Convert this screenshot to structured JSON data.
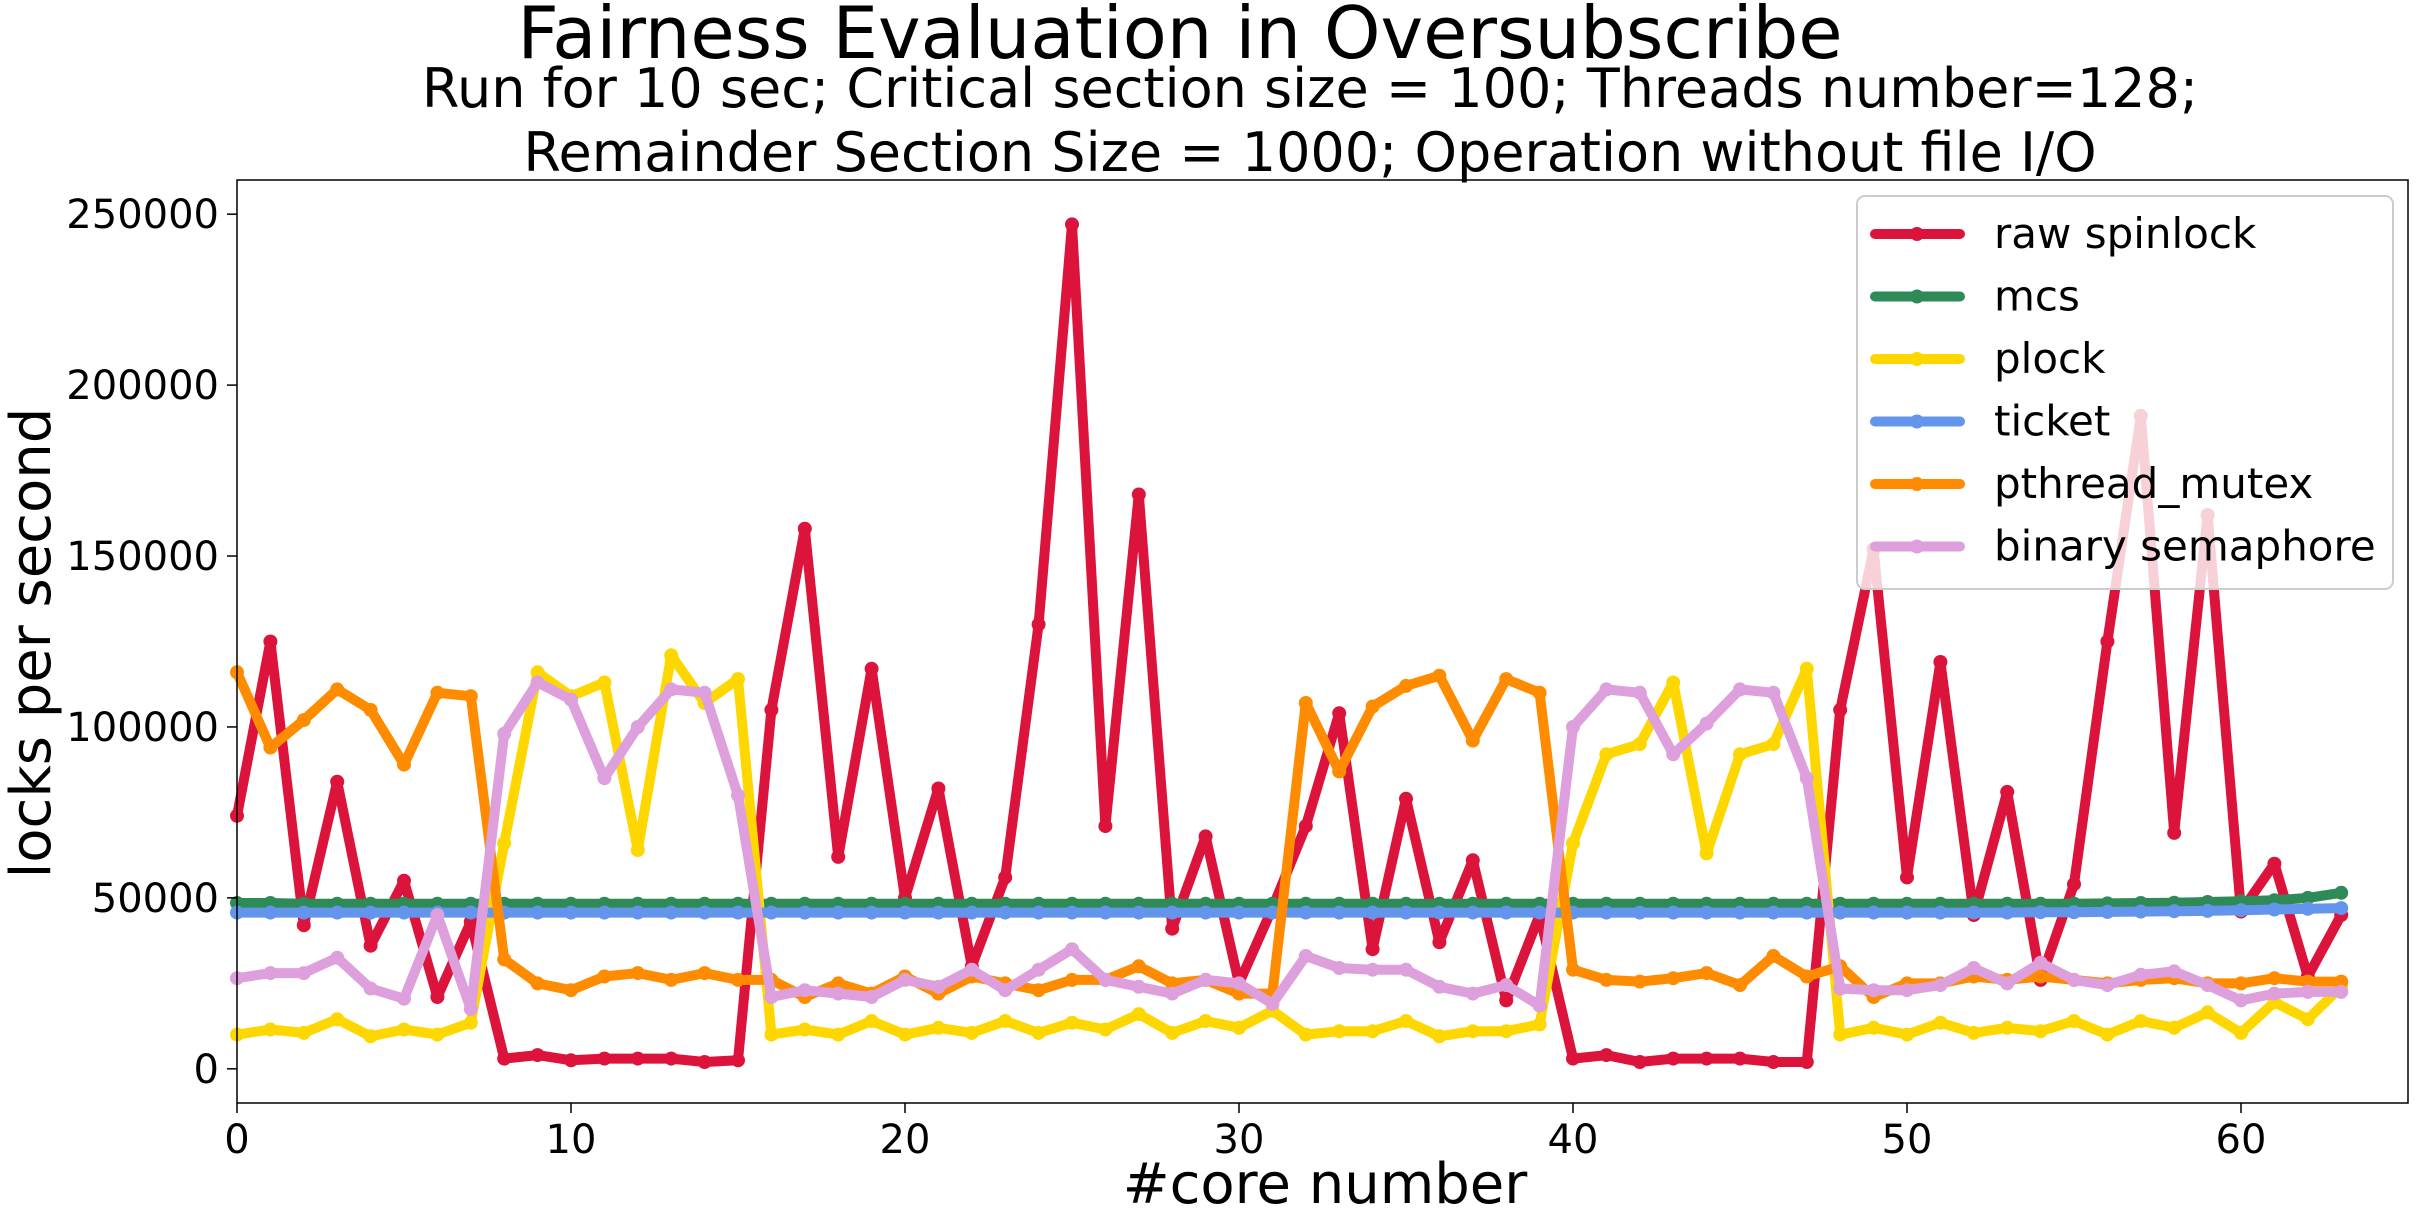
{
  "chart_data": {
    "type": "line",
    "title": "Fairness Evaluation in Oversubscribe",
    "subtitle_line1": "Run for 10 sec; Critical section size = 100; Threads number=128;",
    "subtitle_line2": "Remainder Section Size = 1000; Operation without file I/O",
    "xlabel": "#core number",
    "ylabel": "locks per second",
    "xlim": [
      0,
      65
    ],
    "ylim": [
      -10000,
      260000
    ],
    "xticks": [
      0,
      10,
      20,
      30,
      40,
      50,
      60
    ],
    "yticks": [
      0,
      50000,
      100000,
      150000,
      200000,
      250000
    ],
    "grid": false,
    "legend_position": "upper right",
    "x": [
      0,
      1,
      2,
      3,
      4,
      5,
      6,
      7,
      8,
      9,
      10,
      11,
      12,
      13,
      14,
      15,
      16,
      17,
      18,
      19,
      20,
      21,
      22,
      23,
      24,
      25,
      26,
      27,
      28,
      29,
      30,
      31,
      32,
      33,
      34,
      35,
      36,
      37,
      38,
      39,
      40,
      41,
      42,
      43,
      44,
      45,
      46,
      47,
      48,
      49,
      50,
      51,
      52,
      53,
      54,
      55,
      56,
      57,
      58,
      59,
      60,
      61,
      62,
      63
    ],
    "series": [
      {
        "name": "raw spinlock",
        "color": "#dc143c",
        "values": [
          74000,
          125000,
          42000,
          84000,
          36000,
          55000,
          21000,
          43000,
          3000,
          4000,
          2500,
          3000,
          3000,
          3000,
          2000,
          2500,
          105000,
          158000,
          62000,
          117000,
          50000,
          82000,
          30000,
          56000,
          130000,
          247000,
          71000,
          168000,
          41000,
          68000,
          25000,
          47000,
          71000,
          104000,
          35000,
          79000,
          37000,
          61000,
          20000,
          45000,
          3000,
          4000,
          2000,
          3000,
          3000,
          3000,
          2000,
          2000,
          105000,
          152000,
          56000,
          119000,
          45000,
          81000,
          26000,
          54000,
          125000,
          191000,
          69000,
          162000,
          46000,
          60000,
          27000,
          45000
        ]
      },
      {
        "name": "mcs",
        "color": "#2e8b57",
        "values": [
          48500,
          48500,
          48300,
          48300,
          48300,
          48300,
          48300,
          48300,
          48300,
          48300,
          48300,
          48300,
          48300,
          48300,
          48300,
          48300,
          48300,
          48300,
          48300,
          48300,
          48300,
          48300,
          48300,
          48300,
          48300,
          48300,
          48300,
          48300,
          48300,
          48300,
          48300,
          48300,
          48300,
          48300,
          48300,
          48300,
          48300,
          48300,
          48300,
          48300,
          48300,
          48300,
          48300,
          48300,
          48300,
          48300,
          48300,
          48300,
          48300,
          48300,
          48300,
          48300,
          48300,
          48300,
          48300,
          48300,
          48400,
          48500,
          48600,
          48800,
          49000,
          49300,
          50000,
          51500
        ]
      },
      {
        "name": "plock",
        "color": "#ffd700",
        "values": [
          10000,
          11500,
          10500,
          14500,
          9500,
          11500,
          10000,
          13500,
          66000,
          116000,
          109000,
          113000,
          64000,
          121000,
          107000,
          114000,
          10000,
          11500,
          10000,
          14000,
          10000,
          12000,
          10500,
          14000,
          10500,
          13500,
          11500,
          16000,
          10500,
          14000,
          12000,
          17000,
          10000,
          11000,
          11000,
          14000,
          9500,
          11000,
          11000,
          13000,
          66000,
          92000,
          95000,
          113000,
          63000,
          92000,
          95000,
          117000,
          10000,
          12000,
          10000,
          13500,
          10500,
          12000,
          11000,
          14000,
          10000,
          14000,
          12000,
          16500,
          10500,
          19500,
          14500,
          24000
        ]
      },
      {
        "name": "ticket",
        "color": "#6495ed",
        "values": [
          45700,
          45700,
          45700,
          45700,
          45700,
          45700,
          45700,
          45700,
          45700,
          45700,
          45700,
          45700,
          45700,
          45700,
          45700,
          45700,
          45700,
          45700,
          45700,
          45700,
          45700,
          45700,
          45700,
          45700,
          45700,
          45700,
          45700,
          45700,
          45700,
          45700,
          45700,
          45700,
          45700,
          45700,
          45700,
          45700,
          45700,
          45700,
          45700,
          45700,
          45700,
          45700,
          45700,
          45700,
          45700,
          45700,
          45700,
          45700,
          45700,
          45700,
          45700,
          45700,
          45700,
          45700,
          45800,
          45800,
          45900,
          46000,
          46100,
          46200,
          46400,
          46600,
          46800,
          47000
        ]
      },
      {
        "name": "pthread_mutex",
        "color": "#ff8c00",
        "values": [
          116000,
          94000,
          102000,
          111000,
          105000,
          89000,
          110000,
          109000,
          32000,
          25000,
          23000,
          27000,
          28000,
          26000,
          28000,
          26000,
          26000,
          21000,
          25000,
          22000,
          27000,
          22000,
          27000,
          25000,
          23000,
          26000,
          26000,
          30000,
          25000,
          26000,
          22000,
          22000,
          107000,
          87000,
          106000,
          112000,
          115000,
          96000,
          114000,
          110000,
          29000,
          26000,
          25500,
          26500,
          28000,
          24500,
          33000,
          27000,
          30000,
          21000,
          25000,
          25000,
          27000,
          26000,
          27000,
          26000,
          25000,
          26000,
          26500,
          25000,
          25000,
          26500,
          25500,
          25500
        ]
      },
      {
        "name": "binary semaphore",
        "color": "#dda0dd",
        "values": [
          26500,
          28000,
          28000,
          32500,
          23500,
          20500,
          45000,
          17500,
          98000,
          113000,
          108000,
          85000,
          100000,
          111000,
          110000,
          80000,
          21000,
          23000,
          22000,
          21000,
          26000,
          24000,
          29000,
          23000,
          29000,
          35000,
          26000,
          24000,
          22000,
          26000,
          25000,
          19000,
          33000,
          29500,
          29000,
          29000,
          24000,
          22000,
          24500,
          18500,
          100000,
          111000,
          110000,
          92000,
          101000,
          111000,
          110000,
          85000,
          23500,
          23000,
          23000,
          24500,
          29500,
          25000,
          31000,
          26000,
          24500,
          27500,
          28500,
          24500,
          20000,
          22000,
          22500,
          22500
        ]
      }
    ]
  }
}
